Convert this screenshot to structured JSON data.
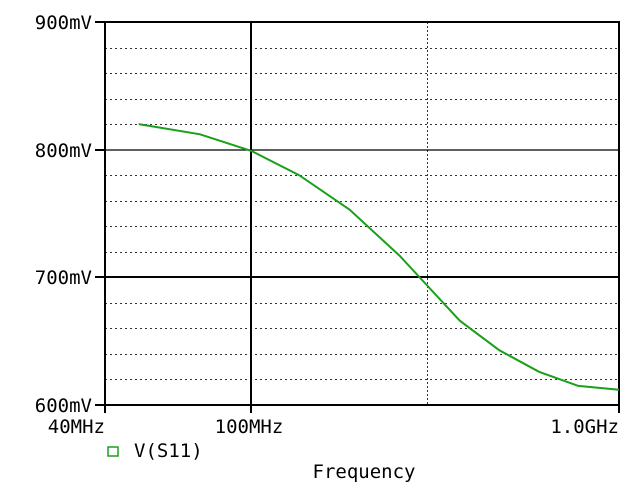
{
  "chart_data": {
    "type": "line",
    "title": "",
    "xlabel": "Frequency",
    "ylabel": "",
    "xscale": "log",
    "xlim_hz": [
      40000000,
      1000000000
    ],
    "ylim_mv": [
      600,
      900
    ],
    "x_ticks": [
      {
        "label": "40MHz",
        "value_hz": 40000000
      },
      {
        "label": "100MHz",
        "value_hz": 100000000
      },
      {
        "label": "1.0GHz",
        "value_hz": 1000000000
      }
    ],
    "x_minor_grid_hz": [
      300000000
    ],
    "y_ticks": [
      {
        "label": "600mV",
        "value": 600
      },
      {
        "label": "700mV",
        "value": 700
      },
      {
        "label": "800mV",
        "value": 800
      },
      {
        "label": "900mV",
        "value": 900
      }
    ],
    "y_minor_grid_mv": [
      620,
      640,
      660,
      680,
      720,
      740,
      760,
      780,
      820,
      840,
      860,
      880
    ],
    "legend": [
      {
        "name": "V(S11)",
        "color": "#1aa01a",
        "marker": "square-outline"
      }
    ],
    "legend_position": "bottom-left",
    "series": [
      {
        "name": "V(S11)",
        "color": "#1aa01a",
        "x_mhz": [
          49.4,
          72.5,
          100,
          135,
          185,
          253,
          300,
          369,
          472,
          606,
          775,
          1000
        ],
        "values_mv": [
          820,
          812,
          799,
          780,
          753,
          717,
          694,
          666,
          643,
          626,
          615,
          612
        ]
      }
    ]
  },
  "colors": {
    "background": "#ffffff",
    "axis": "#000000",
    "grid_dotted": "#333333",
    "trace": "#1aa01a"
  }
}
